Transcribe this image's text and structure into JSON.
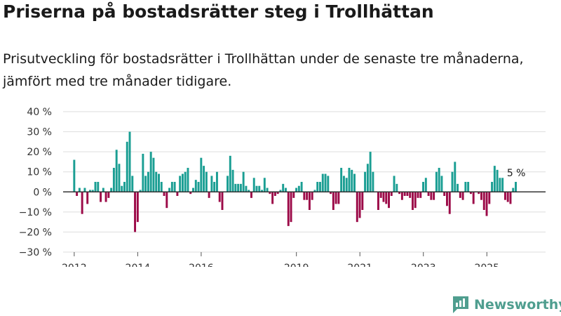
{
  "header": {
    "title": "Priserna på bostadsrätter steg i Trollhättan",
    "subtitle": "Prisutveckling för bostadsrätter i Trollhättan under de senaste tre månaderna, jämfört med tre månader tidigare."
  },
  "brand": {
    "name": "Newsworthy",
    "color": "#4f9e8f"
  },
  "colors": {
    "positive": "#1a9e93",
    "negative": "#9c0a48",
    "zero_line": "#333333",
    "grid": "#dddddd"
  },
  "chart_data": {
    "type": "bar",
    "title": "Priserna på bostadsrätter steg i Trollhättan",
    "xlabel": "",
    "ylabel": "",
    "ylim": [
      -30,
      40
    ],
    "yticks": [
      40,
      30,
      20,
      10,
      0,
      -10,
      -20,
      -30
    ],
    "ytick_labels": [
      "40 %",
      "30 %",
      "20 %",
      "10 %",
      "0 %",
      "−10 %",
      "−20 %",
      "−30 %"
    ],
    "x_start": 2012.0,
    "x_step": 0.0833,
    "x_range": [
      2011.65,
      2026.85
    ],
    "xticks": [
      2012,
      2014,
      2016,
      2019,
      2021,
      2023,
      2025
    ],
    "values": [
      16,
      -2,
      2,
      -11,
      2,
      -6,
      1,
      1,
      5,
      5,
      -5,
      2,
      -5,
      -3,
      2,
      12,
      21,
      14,
      3,
      5,
      25,
      30,
      8,
      -20,
      -15,
      1,
      19,
      8,
      10,
      20,
      17,
      10,
      9,
      5,
      -2,
      -8,
      2,
      5,
      5,
      -2,
      8,
      9,
      10,
      12,
      -1,
      2,
      6,
      5,
      17,
      13,
      10,
      -3,
      8,
      5,
      10,
      -5,
      -9,
      0,
      8,
      18,
      11,
      4,
      4,
      4,
      10,
      3,
      1,
      -3,
      7,
      3,
      3,
      1,
      7,
      2,
      -1,
      -6,
      -2,
      -1,
      1,
      4,
      2,
      -17,
      -15,
      -3,
      2,
      3,
      5,
      -4,
      -4,
      -9,
      -4,
      1,
      5,
      5,
      9,
      9,
      8,
      -1,
      -9,
      -6,
      -6,
      12,
      8,
      7,
      12,
      11,
      9,
      -15,
      -13,
      -9,
      10,
      14,
      20,
      10,
      0,
      -9,
      -3,
      -5,
      -6,
      -8,
      -2,
      8,
      4,
      -1,
      -4,
      -2,
      -2,
      -3,
      -9,
      -8,
      -3,
      -3,
      5,
      7,
      -2,
      -4,
      -4,
      10,
      12,
      8,
      -2,
      -7,
      -11,
      10,
      15,
      4,
      -3,
      -4,
      5,
      5,
      -1,
      -6,
      0,
      -1,
      -4,
      -9,
      -12,
      -6,
      5,
      13,
      11,
      7,
      7,
      -4,
      -5,
      -6,
      2,
      5
    ],
    "annotation": {
      "label": "5 %",
      "value": 5
    }
  }
}
